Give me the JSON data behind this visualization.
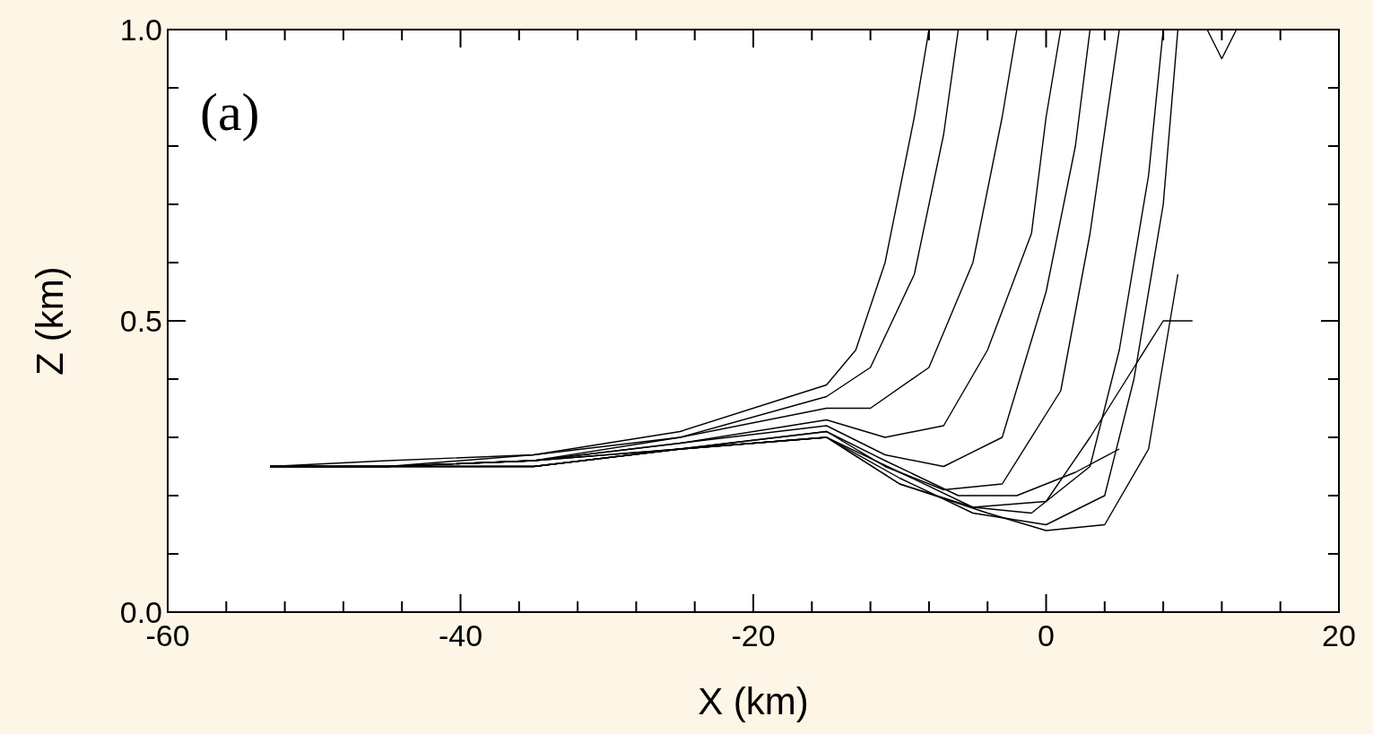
{
  "chart_data": {
    "type": "line",
    "xlabel": "X (km)",
    "ylabel": "Z (km)",
    "annotations": [
      "(a)"
    ],
    "xlim": [
      -60,
      20
    ],
    "ylim": [
      0,
      1
    ],
    "xticks": [
      -60,
      {
        "value": -56,
        "label": null
      },
      {
        "value": -52,
        "label": null
      },
      {
        "value": -48,
        "label": null
      },
      {
        "value": -44,
        "label": null
      },
      -40,
      {
        "value": -36,
        "label": null
      },
      {
        "value": -32,
        "label": null
      },
      {
        "value": -28,
        "label": null
      },
      {
        "value": -24,
        "label": null
      },
      -20,
      {
        "value": -16,
        "label": null
      },
      {
        "value": -12,
        "label": null
      },
      {
        "value": -8,
        "label": null
      },
      {
        "value": -4,
        "label": null
      },
      0,
      {
        "value": 4,
        "label": null
      },
      {
        "value": 8,
        "label": null
      },
      {
        "value": 12,
        "label": null
      },
      {
        "value": 16,
        "label": null
      },
      20
    ],
    "yticks": [
      {
        "value": 0,
        "label": "0.0"
      },
      {
        "value": 0.1,
        "label": null
      },
      {
        "value": 0.2,
        "label": null
      },
      {
        "value": 0.3,
        "label": null
      },
      {
        "value": 0.4,
        "label": null
      },
      {
        "value": 0.5,
        "label": "0.5"
      },
      {
        "value": 0.6,
        "label": null
      },
      {
        "value": 0.7,
        "label": null
      },
      {
        "value": 0.8,
        "label": null
      },
      {
        "value": 0.9,
        "label": null
      },
      {
        "value": 1,
        "label": "1.0"
      }
    ],
    "grid": false,
    "marker": "none",
    "line_style": "solid",
    "series": [
      {
        "color": "#000000",
        "x": [
          -53,
          -45,
          -35,
          -25,
          -15,
          -13,
          -11,
          -9,
          -8
        ],
        "values": [
          0.25,
          0.26,
          0.27,
          0.31,
          0.39,
          0.45,
          0.6,
          0.85,
          1.0
        ]
      },
      {
        "color": "#000000",
        "x": [
          -53,
          -45,
          -35,
          -25,
          -15,
          -12,
          -9,
          -7,
          -6
        ],
        "values": [
          0.25,
          0.25,
          0.27,
          0.3,
          0.37,
          0.42,
          0.58,
          0.82,
          1.0
        ]
      },
      {
        "color": "#000000",
        "x": [
          -53,
          -45,
          -35,
          -25,
          -15,
          -12,
          -8,
          -5,
          -3,
          -2
        ],
        "values": [
          0.25,
          0.25,
          0.26,
          0.3,
          0.35,
          0.35,
          0.42,
          0.6,
          0.85,
          1.0
        ]
      },
      {
        "color": "#000000",
        "x": [
          -53,
          -45,
          -35,
          -25,
          -15,
          -11,
          -7,
          -4,
          -1,
          0,
          1
        ],
        "values": [
          0.25,
          0.25,
          0.26,
          0.29,
          0.33,
          0.3,
          0.32,
          0.45,
          0.65,
          0.85,
          1.0
        ]
      },
      {
        "color": "#000000",
        "x": [
          -53,
          -45,
          -35,
          -25,
          -15,
          -11,
          -7,
          -3,
          0,
          2,
          3
        ],
        "values": [
          0.25,
          0.25,
          0.26,
          0.29,
          0.32,
          0.27,
          0.25,
          0.3,
          0.55,
          0.8,
          1.0
        ]
      },
      {
        "color": "#000000",
        "x": [
          -53,
          -45,
          -35,
          -25,
          -15,
          -11,
          -7,
          -3,
          1,
          3,
          5
        ],
        "values": [
          0.25,
          0.25,
          0.26,
          0.28,
          0.31,
          0.25,
          0.21,
          0.22,
          0.38,
          0.65,
          1.0
        ]
      },
      {
        "color": "#000000",
        "x": [
          -53,
          -45,
          -35,
          -25,
          -15,
          -10,
          -5,
          -1,
          3,
          5,
          7,
          8
        ],
        "values": [
          0.25,
          0.25,
          0.25,
          0.28,
          0.3,
          0.24,
          0.18,
          0.17,
          0.25,
          0.45,
          0.75,
          1.0
        ]
      },
      {
        "color": "#000000",
        "x": [
          -53,
          -45,
          -35,
          -25,
          -15,
          -10,
          -5,
          0,
          4,
          6,
          8,
          9
        ],
        "values": [
          0.25,
          0.25,
          0.25,
          0.28,
          0.3,
          0.23,
          0.17,
          0.15,
          0.2,
          0.4,
          0.7,
          1.0
        ]
      },
      {
        "color": "#000000",
        "x": [
          -53,
          -45,
          -35,
          -25,
          -15,
          -10,
          -5,
          0,
          3,
          6,
          8,
          10
        ],
        "values": [
          0.25,
          0.25,
          0.25,
          0.28,
          0.3,
          0.22,
          0.18,
          0.19,
          0.3,
          0.42,
          0.5,
          0.5
        ]
      },
      {
        "color": "#000000",
        "x": [
          -53,
          -45,
          -35,
          -25,
          -15,
          -10,
          -4,
          0,
          4,
          7,
          9
        ],
        "values": [
          0.25,
          0.25,
          0.25,
          0.28,
          0.3,
          0.22,
          0.17,
          0.14,
          0.15,
          0.28,
          0.58
        ]
      },
      {
        "color": "#000000",
        "x": [
          -53,
          -45,
          -35,
          -25,
          -15,
          -11,
          -6,
          -2,
          2,
          5
        ],
        "values": [
          0.25,
          0.25,
          0.26,
          0.28,
          0.31,
          0.26,
          0.2,
          0.2,
          0.24,
          0.28
        ]
      },
      {
        "color": "#000000",
        "x": [
          11,
          12,
          13
        ],
        "values": [
          1.0,
          0.95,
          1.0
        ]
      }
    ]
  }
}
